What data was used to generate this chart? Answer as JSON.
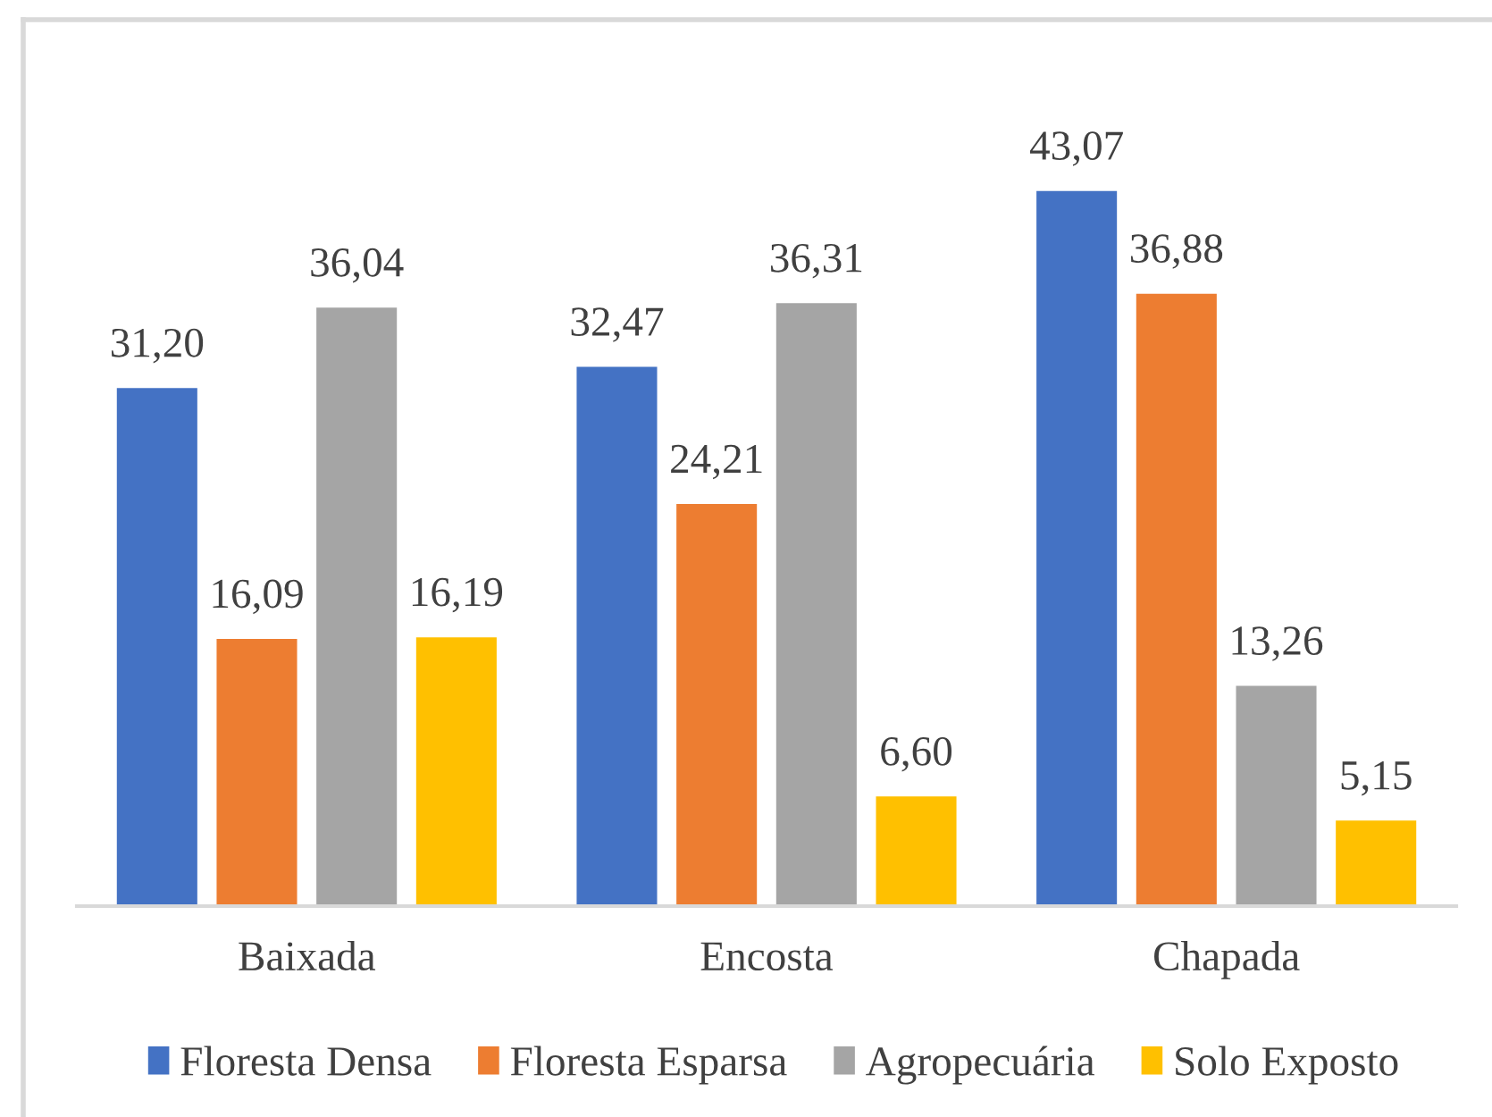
{
  "chart_data": {
    "type": "bar",
    "categories": [
      "Baixada",
      "Encosta",
      "Chapada"
    ],
    "series": [
      {
        "name": "Floresta Densa",
        "color": "#4472c4",
        "values": [
          31.2,
          32.47,
          43.07
        ],
        "value_labels": [
          "31,20",
          "32,47",
          "43,07"
        ]
      },
      {
        "name": "Floresta Esparsa",
        "color": "#ed7d31",
        "values": [
          16.09,
          24.21,
          36.88
        ],
        "value_labels": [
          "16,09",
          "24,21",
          "36,88"
        ]
      },
      {
        "name": "Agropecuária",
        "color": "#a5a5a5",
        "values": [
          36.04,
          36.31,
          13.26
        ],
        "value_labels": [
          "36,04",
          "36,31",
          "13,26"
        ]
      },
      {
        "name": "Solo Exposto",
        "color": "#ffc000",
        "values": [
          16.19,
          6.6,
          5.15
        ],
        "value_labels": [
          "16,19",
          "6,60",
          "5,15"
        ]
      }
    ],
    "legend": "bottom"
  }
}
